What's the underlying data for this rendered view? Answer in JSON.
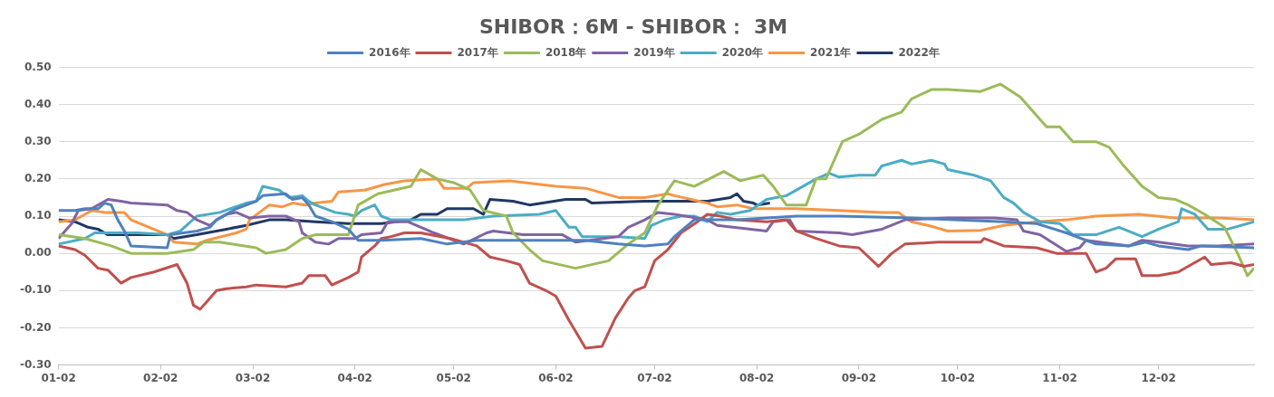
{
  "chart_data": {
    "type": "line",
    "title": "SHIBOR：6M - SHIBOR： 3M",
    "legend": "top",
    "grid": "y",
    "xlim": [
      "--01-02",
      "--12-31"
    ],
    "xticks": [
      {
        "value": "--01-02",
        "label": "01-02"
      },
      {
        "value": "--02-02",
        "label": "02-02"
      },
      {
        "value": "--03-02",
        "label": "03-02"
      },
      {
        "value": "--04-02",
        "label": "04-02"
      },
      {
        "value": "--05-02",
        "label": "05-02"
      },
      {
        "value": "--06-02",
        "label": "06-02"
      },
      {
        "value": "--07-02",
        "label": "07-02"
      },
      {
        "value": "--08-02",
        "label": "08-02"
      },
      {
        "value": "--09-02",
        "label": "09-02"
      },
      {
        "value": "--10-02",
        "label": "10-02"
      },
      {
        "value": "--11-02",
        "label": "11-02"
      },
      {
        "value": "--12-02",
        "label": "12-02"
      }
    ],
    "ylim": [
      -0.3,
      0.5
    ],
    "yticks": [
      {
        "value": -0.3,
        "label": "-0.30"
      },
      {
        "value": -0.2,
        "label": "-0.20"
      },
      {
        "value": -0.1,
        "label": "-0.10"
      },
      {
        "value": 0,
        "label": "0.00"
      },
      {
        "value": 0.1,
        "label": "0.10"
      },
      {
        "value": 0.2,
        "label": "0.20"
      },
      {
        "value": 0.3,
        "label": "0.30"
      },
      {
        "value": 0.4,
        "label": "0.40"
      },
      {
        "value": 0.5,
        "label": "0.50"
      }
    ],
    "series": [
      {
        "name": "2016年",
        "color": "#4f81bd",
        "x": [
          "--01-02",
          "--01-07",
          "--01-10",
          "--01-14",
          "--01-16",
          "--01-18",
          "--01-20",
          "--01-22",
          "--01-24",
          "--02-04",
          "--02-05",
          "--02-13",
          "--02-17",
          "--02-19",
          "--02-25",
          "--03-03",
          "--03-05",
          "--03-12",
          "--03-14",
          "--03-17",
          "--03-19",
          "--03-21",
          "--03-26",
          "--03-31",
          "--04-03",
          "--04-10",
          "--04-22",
          "--04-30",
          "--05-09",
          "--05-23",
          "--06-11",
          "--06-21",
          "--06-29",
          "--07-06",
          "--07-08",
          "--07-14",
          "--07-27",
          "--08-05",
          "--08-14",
          "--08-27",
          "--09-18",
          "--10-16",
          "--10-26",
          "--11-04",
          "--11-13",
          "--11-23",
          "--11-28",
          "--12-02",
          "--12-11",
          "--12-15",
          "--12-31"
        ],
        "values": [
          0.115,
          0.115,
          0.12,
          0.12,
          0.135,
          0.13,
          0.09,
          0.06,
          0.02,
          0.015,
          0.05,
          0.06,
          0.07,
          0.09,
          0.12,
          0.14,
          0.155,
          0.16,
          0.145,
          0.15,
          0.13,
          0.1,
          0.085,
          0.065,
          0.035,
          0.035,
          0.04,
          0.025,
          0.035,
          0.035,
          0.035,
          0.025,
          0.02,
          0.025,
          0.045,
          0.09,
          0.09,
          0.095,
          0.1,
          0.1,
          0.095,
          0.085,
          0.08,
          0.055,
          0.025,
          0.02,
          0.03,
          0.02,
          0.01,
          0.02,
          0.015
        ]
      },
      {
        "name": "2017年",
        "color": "#c0504d",
        "x": [
          "--01-02",
          "--01-07",
          "--01-10",
          "--01-14",
          "--01-17",
          "--01-21",
          "--01-24",
          "--01-31",
          "--02-07",
          "--02-10",
          "--02-12",
          "--02-14",
          "--02-16",
          "--02-19",
          "--02-22",
          "--02-28",
          "--03-03",
          "--03-12",
          "--03-17",
          "--03-19",
          "--03-24",
          "--03-26",
          "--03-31",
          "--04-03",
          "--04-04",
          "--04-08",
          "--04-10",
          "--04-13",
          "--04-17",
          "--04-22",
          "--05-01",
          "--05-09",
          "--05-13",
          "--05-18",
          "--05-22",
          "--05-25",
          "--05-30",
          "--06-02",
          "--06-06",
          "--06-08",
          "--06-11",
          "--06-16",
          "--06-20",
          "--06-24",
          "--06-26",
          "--06-29",
          "--07-02",
          "--07-06",
          "--07-10",
          "--07-15",
          "--07-18",
          "--07-22",
          "--07-27",
          "--08-05",
          "--08-11",
          "--08-14",
          "--08-20",
          "--08-27",
          "--09-02",
          "--09-05",
          "--09-08",
          "--09-12",
          "--09-16",
          "--09-26",
          "--10-09",
          "--10-10",
          "--10-16",
          "--10-26",
          "--11-01",
          "--11-10",
          "--11-13",
          "--11-16",
          "--11-19",
          "--11-25",
          "--11-27",
          "--12-02",
          "--12-08",
          "--12-11",
          "--12-16",
          "--12-18",
          "--12-24",
          "--12-28",
          "--12-31"
        ],
        "values": [
          0.02,
          0.01,
          -0.005,
          -0.04,
          -0.045,
          -0.08,
          -0.065,
          -0.05,
          -0.03,
          -0.08,
          -0.14,
          -0.15,
          -0.13,
          -0.1,
          -0.095,
          -0.09,
          -0.085,
          -0.09,
          -0.08,
          -0.06,
          -0.06,
          -0.085,
          -0.065,
          -0.05,
          -0.01,
          0.02,
          0.04,
          0.045,
          0.055,
          0.055,
          0.04,
          0.02,
          -0.01,
          -0.02,
          -0.03,
          -0.08,
          -0.1,
          -0.115,
          -0.18,
          -0.21,
          -0.255,
          -0.25,
          -0.175,
          -0.12,
          -0.1,
          -0.09,
          -0.02,
          0.01,
          0.055,
          0.085,
          0.105,
          0.1,
          0.09,
          0.085,
          0.09,
          0.06,
          0.04,
          0.02,
          0.015,
          -0.01,
          -0.035,
          0,
          0.025,
          0.03,
          0.03,
          0.04,
          0.02,
          0.015,
          0,
          0,
          -0.05,
          -0.04,
          -0.015,
          -0.015,
          -0.06,
          -0.06,
          -0.05,
          -0.035,
          -0.01,
          -0.03,
          -0.025,
          -0.035,
          -0.03
        ]
      },
      {
        "name": "2018年",
        "color": "#9bbb59",
        "x": [
          "--01-02",
          "--01-10",
          "--01-18",
          "--01-24",
          "--02-04",
          "--02-12",
          "--02-15",
          "--02-20",
          "--03-03",
          "--03-06",
          "--03-12",
          "--03-17",
          "--03-21",
          "--03-31",
          "--04-03",
          "--04-09",
          "--04-19",
          "--04-22",
          "--04-27",
          "--05-02",
          "--05-07",
          "--05-11",
          "--05-18",
          "--05-20",
          "--05-25",
          "--05-29",
          "--06-08",
          "--06-18",
          "--06-24",
          "--06-29",
          "--07-03",
          "--07-08",
          "--07-14",
          "--07-23",
          "--07-28",
          "--08-04",
          "--08-07",
          "--08-11",
          "--08-17",
          "--08-20",
          "--08-23",
          "--08-28",
          "--09-02",
          "--09-09",
          "--09-15",
          "--09-18",
          "--09-24",
          "--09-29",
          "--10-09",
          "--10-15",
          "--10-21",
          "--10-25",
          "--10-29",
          "--11-02",
          "--11-06",
          "--11-13",
          "--11-17",
          "--11-21",
          "--11-27",
          "--12-02",
          "--12-07",
          "--12-11",
          "--12-16",
          "--12-22",
          "--12-26",
          "--12-29",
          "--12-31"
        ],
        "values": [
          0.05,
          0.04,
          0.02,
          0,
          0,
          0.01,
          0.03,
          0.03,
          0.015,
          0,
          0.01,
          0.04,
          0.05,
          0.05,
          0.13,
          0.16,
          0.18,
          0.225,
          0.2,
          0.19,
          0.17,
          0.115,
          0.1,
          0.055,
          0.01,
          -0.02,
          -0.04,
          -0.02,
          0.025,
          0.055,
          0.13,
          0.195,
          0.18,
          0.22,
          0.195,
          0.21,
          0.18,
          0.13,
          0.13,
          0.2,
          0.2,
          0.3,
          0.32,
          0.36,
          0.38,
          0.415,
          0.44,
          0.44,
          0.435,
          0.455,
          0.42,
          0.38,
          0.34,
          0.34,
          0.3,
          0.3,
          0.285,
          0.24,
          0.18,
          0.15,
          0.145,
          0.13,
          0.105,
          0.07,
          0,
          -0.06,
          -0.04
        ]
      },
      {
        "name": "2019年",
        "color": "#8064a2",
        "x": [
          "--01-02",
          "--01-06",
          "--01-08",
          "--01-12",
          "--01-17",
          "--01-21",
          "--01-24",
          "--02-04",
          "--02-07",
          "--02-10",
          "--02-13",
          "--02-17",
          "--02-19",
          "--02-22",
          "--02-25",
          "--03-01",
          "--03-07",
          "--03-12",
          "--03-16",
          "--03-17",
          "--03-21",
          "--03-25",
          "--03-28",
          "--04-02",
          "--04-04",
          "--04-10",
          "--04-12",
          "--04-18",
          "--04-26",
          "--05-05",
          "--05-12",
          "--05-14",
          "--05-23",
          "--06-04",
          "--06-08",
          "--06-21",
          "--06-24",
          "--06-29",
          "--07-03",
          "--07-08",
          "--07-18",
          "--07-21",
          "--08-05",
          "--08-07",
          "--08-12",
          "--08-14",
          "--08-27",
          "--08-31",
          "--09-09",
          "--09-16",
          "--09-29",
          "--10-13",
          "--10-20",
          "--10-22",
          "--10-27",
          "--11-04",
          "--11-08",
          "--11-10",
          "--11-23",
          "--11-27",
          "--12-02",
          "--12-11",
          "--12-20",
          "--12-31"
        ],
        "values": [
          0.04,
          0.08,
          0.115,
          0.12,
          0.145,
          0.14,
          0.135,
          0.13,
          0.115,
          0.11,
          0.09,
          0.075,
          0.09,
          0.105,
          0.11,
          0.095,
          0.1,
          0.1,
          0.085,
          0.055,
          0.03,
          0.025,
          0.04,
          0.04,
          0.05,
          0.055,
          0.085,
          0.085,
          0.055,
          0.025,
          0.055,
          0.06,
          0.05,
          0.05,
          0.03,
          0.045,
          0.07,
          0.09,
          0.11,
          0.105,
          0.09,
          0.075,
          0.06,
          0.085,
          0.09,
          0.06,
          0.055,
          0.05,
          0.065,
          0.09,
          0.095,
          0.095,
          0.09,
          0.06,
          0.05,
          0.005,
          0.015,
          0.035,
          0.02,
          0.035,
          0.03,
          0.02,
          0.02,
          0.025
        ]
      },
      {
        "name": "2020年",
        "color": "#4bacc6",
        "x": [
          "--01-02",
          "--01-10",
          "--01-13",
          "--01-26",
          "--02-04",
          "--02-08",
          "--02-13",
          "--02-20",
          "--02-28",
          "--03-03",
          "--03-05",
          "--03-10",
          "--03-13",
          "--03-17",
          "--03-19",
          "--03-21",
          "--03-27",
          "--03-31",
          "--04-02",
          "--04-04",
          "--04-08",
          "--04-10",
          "--04-13",
          "--04-22",
          "--05-05",
          "--05-14",
          "--05-28",
          "--06-02",
          "--06-06",
          "--06-08",
          "--06-10",
          "--06-21",
          "--06-29",
          "--07-01",
          "--07-05",
          "--07-10",
          "--07-14",
          "--07-18",
          "--07-21",
          "--07-25",
          "--07-31",
          "--08-05",
          "--08-11",
          "--08-16",
          "--08-20",
          "--08-24",
          "--08-27",
          "--09-02",
          "--09-07",
          "--09-09",
          "--09-15",
          "--09-18",
          "--09-24",
          "--09-28",
          "--09-29",
          "--10-07",
          "--10-12",
          "--10-16",
          "--10-19",
          "--10-22",
          "--10-27",
          "--11-02",
          "--11-06",
          "--11-13",
          "--11-20",
          "--11-27",
          "--12-02",
          "--12-08",
          "--12-09",
          "--12-13",
          "--12-17",
          "--12-23",
          "--12-31"
        ],
        "values": [
          0.025,
          0.04,
          0.055,
          0.055,
          0.05,
          0.06,
          0.1,
          0.11,
          0.135,
          0.14,
          0.18,
          0.17,
          0.15,
          0.155,
          0.14,
          0.13,
          0.11,
          0.105,
          0.1,
          0.115,
          0.13,
          0.1,
          0.09,
          0.09,
          0.09,
          0.1,
          0.105,
          0.115,
          0.07,
          0.07,
          0.045,
          0.045,
          0.04,
          0.075,
          0.09,
          0.1,
          0.1,
          0.085,
          0.11,
          0.105,
          0.115,
          0.145,
          0.155,
          0.18,
          0.2,
          0.215,
          0.205,
          0.21,
          0.21,
          0.235,
          0.25,
          0.24,
          0.25,
          0.24,
          0.225,
          0.21,
          0.195,
          0.15,
          0.135,
          0.11,
          0.085,
          0.08,
          0.05,
          0.05,
          0.07,
          0.045,
          0.065,
          0.085,
          0.12,
          0.105,
          0.065,
          0.065,
          0.085
        ]
      },
      {
        "name": "2021年",
        "color": "#f79646",
        "x": [
          "--01-02",
          "--01-07",
          "--01-10",
          "--01-12",
          "--01-16",
          "--01-22",
          "--01-24",
          "--02-04",
          "--02-06",
          "--02-13",
          "--02-16",
          "--02-25",
          "--02-28",
          "--03-01",
          "--03-07",
          "--03-11",
          "--03-14",
          "--03-18",
          "--03-21",
          "--03-26",
          "--03-28",
          "--04-05",
          "--04-11",
          "--04-17",
          "--04-27",
          "--04-29",
          "--05-06",
          "--05-08",
          "--05-19",
          "--06-02",
          "--06-11",
          "--06-21",
          "--06-29",
          "--07-06",
          "--07-08",
          "--07-18",
          "--07-21",
          "--07-27",
          "--08-01",
          "--08-14",
          "--08-27",
          "--09-09",
          "--09-14",
          "--09-18",
          "--09-23",
          "--09-29",
          "--10-09",
          "--10-16",
          "--10-26",
          "--11-04",
          "--11-13",
          "--11-26",
          "--12-07",
          "--12-20",
          "--12-31"
        ],
        "values": [
          0.085,
          0.09,
          0.105,
          0.115,
          0.11,
          0.11,
          0.09,
          0.05,
          0.03,
          0.025,
          0.035,
          0.055,
          0.065,
          0.09,
          0.13,
          0.125,
          0.135,
          0.13,
          0.135,
          0.14,
          0.165,
          0.17,
          0.185,
          0.195,
          0.2,
          0.175,
          0.175,
          0.19,
          0.195,
          0.18,
          0.175,
          0.15,
          0.15,
          0.16,
          0.155,
          0.135,
          0.125,
          0.13,
          0.12,
          0.12,
          0.115,
          0.11,
          0.11,
          0.085,
          0.075,
          0.06,
          0.062,
          0.075,
          0.085,
          0.09,
          0.1,
          0.105,
          0.095,
          0.095,
          0.09
        ]
      },
      {
        "name": "2022年",
        "color": "#1f3864",
        "x": [
          "--01-02",
          "--01-07",
          "--01-11",
          "--01-14",
          "--01-17",
          "--01-26",
          "--02-04",
          "--02-06",
          "--02-13",
          "--02-22",
          "--02-28",
          "--03-07",
          "--03-12",
          "--03-21",
          "--03-31",
          "--04-10",
          "--04-19",
          "--04-22",
          "--04-27",
          "--04-30",
          "--05-08",
          "--05-11",
          "--05-13",
          "--05-20",
          "--05-25",
          "--06-05",
          "--06-11",
          "--06-13",
          "--06-29",
          "--07-18",
          "--07-25",
          "--07-27",
          "--07-29",
          "--08-01",
          "--08-02",
          "--08-06"
        ],
        "values": [
          0.09,
          0.085,
          0.07,
          0.065,
          0.05,
          0.05,
          0.05,
          0.04,
          0.05,
          0.065,
          0.075,
          0.09,
          0.09,
          0.085,
          0.08,
          0.08,
          0.09,
          0.105,
          0.105,
          0.12,
          0.12,
          0.105,
          0.145,
          0.14,
          0.13,
          0.145,
          0.145,
          0.135,
          0.14,
          0.14,
          0.15,
          0.16,
          0.14,
          0.135,
          0.13,
          0.135
        ]
      }
    ]
  }
}
